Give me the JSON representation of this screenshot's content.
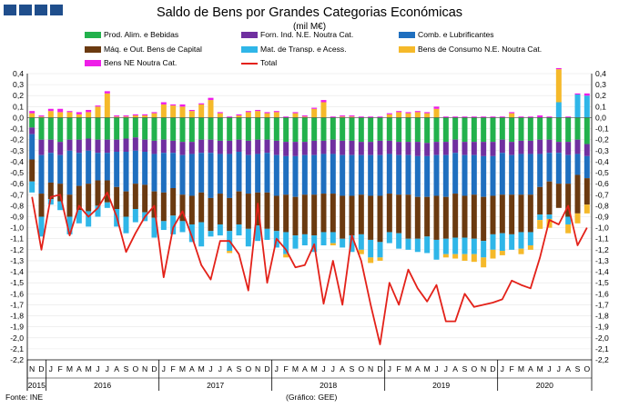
{
  "header": {
    "title": "Saldo de Bens por Grandes Categorias Económicas",
    "unit": "(mil M€)"
  },
  "footer": {
    "source": "Fonte: INE",
    "credit": "(Gráfico: GEE)"
  },
  "colors": {
    "food": "#22b14c",
    "ind": "#7030a0",
    "fuel": "#1f6fbf",
    "cap": "#6b3a10",
    "trans": "#2fb6e8",
    "cons": "#f5b92a",
    "ne": "#ee1ee8",
    "total": "#e32119"
  },
  "chart_data": {
    "type": "bar",
    "stacked": true,
    "ylim": [
      -2.2,
      0.4
    ],
    "yticks": [
      "0,4",
      "0,3",
      "0,2",
      "0,1",
      "0,0",
      "-0,1",
      "-0,2",
      "-0,3",
      "-0,4",
      "-0,5",
      "-0,6",
      "-0,7",
      "-0,8",
      "-0,9",
      "-1,0",
      "-1,1",
      "-1,2",
      "-1,3",
      "-1,4",
      "-1,5",
      "-1,6",
      "-1,7",
      "-1,8",
      "-1,9",
      "-2,0",
      "-2,1",
      "-2,2"
    ],
    "categories": [
      "N",
      "D",
      "J",
      "F",
      "M",
      "A",
      "M",
      "J",
      "J",
      "A",
      "S",
      "O",
      "N",
      "D",
      "J",
      "F",
      "M",
      "A",
      "M",
      "J",
      "J",
      "A",
      "S",
      "O",
      "N",
      "D",
      "J",
      "F",
      "M",
      "A",
      "M",
      "J",
      "J",
      "A",
      "S",
      "O",
      "N",
      "D",
      "J",
      "F",
      "M",
      "A",
      "M",
      "J",
      "J",
      "A",
      "S",
      "O",
      "N",
      "D",
      "J",
      "F",
      "M",
      "A",
      "M",
      "J",
      "J",
      "A",
      "S",
      "O"
    ],
    "years": [
      {
        "label": "2015",
        "start": 0,
        "count": 2
      },
      {
        "label": "2016",
        "start": 2,
        "count": 12
      },
      {
        "label": "2017",
        "start": 14,
        "count": 12
      },
      {
        "label": "2018",
        "start": 26,
        "count": 12
      },
      {
        "label": "2019",
        "start": 38,
        "count": 12
      },
      {
        "label": "2020",
        "start": 50,
        "count": 10
      }
    ],
    "series": [
      {
        "name": "Prod. Alim. e Bebidas",
        "key": "food",
        "values": [
          -0.09,
          -0.2,
          -0.2,
          -0.22,
          -0.2,
          -0.2,
          -0.19,
          -0.2,
          -0.2,
          -0.2,
          -0.19,
          -0.18,
          -0.2,
          -0.21,
          -0.2,
          -0.21,
          -0.22,
          -0.22,
          -0.2,
          -0.2,
          -0.21,
          -0.21,
          -0.2,
          -0.21,
          -0.2,
          -0.2,
          -0.21,
          -0.22,
          -0.22,
          -0.22,
          -0.21,
          -0.21,
          -0.2,
          -0.21,
          -0.21,
          -0.22,
          -0.22,
          -0.21,
          -0.21,
          -0.22,
          -0.22,
          -0.22,
          -0.23,
          -0.22,
          -0.22,
          -0.2,
          -0.22,
          -0.22,
          -0.22,
          -0.22,
          -0.2,
          -0.22,
          -0.21,
          -0.21,
          -0.2,
          -0.2,
          -0.22,
          -0.22,
          -0.2,
          -0.24
        ]
      },
      {
        "name": "Forn. Ind. N.E. Noutra Cat.",
        "key": "ind",
        "values": [
          -0.06,
          -0.14,
          -0.12,
          -0.12,
          -0.1,
          -0.12,
          -0.11,
          -0.12,
          -0.12,
          -0.11,
          -0.12,
          -0.12,
          -0.11,
          -0.12,
          -0.12,
          -0.11,
          -0.12,
          -0.11,
          -0.12,
          -0.12,
          -0.12,
          -0.12,
          -0.11,
          -0.13,
          -0.13,
          -0.12,
          -0.13,
          -0.13,
          -0.13,
          -0.12,
          -0.13,
          -0.12,
          -0.13,
          -0.13,
          -0.13,
          -0.12,
          -0.12,
          -0.13,
          -0.12,
          -0.12,
          -0.12,
          -0.13,
          -0.12,
          -0.12,
          -0.12,
          -0.12,
          -0.12,
          -0.12,
          -0.13,
          -0.13,
          -0.12,
          -0.12,
          -0.12,
          -0.12,
          -0.13,
          -0.12,
          -0.1,
          -0.12,
          -0.13,
          -0.11
        ]
      },
      {
        "name": "Comb. e Lubrificantes",
        "key": "fuel",
        "values": [
          -0.23,
          -0.35,
          -0.27,
          -0.26,
          -0.4,
          -0.3,
          -0.3,
          -0.25,
          -0.25,
          -0.32,
          -0.36,
          -0.3,
          -0.3,
          -0.34,
          -0.36,
          -0.32,
          -0.36,
          -0.38,
          -0.36,
          -0.41,
          -0.36,
          -0.4,
          -0.36,
          -0.35,
          -0.35,
          -0.36,
          -0.37,
          -0.35,
          -0.37,
          -0.36,
          -0.36,
          -0.36,
          -0.36,
          -0.37,
          -0.37,
          -0.36,
          -0.37,
          -0.37,
          -0.36,
          -0.36,
          -0.36,
          -0.37,
          -0.37,
          -0.37,
          -0.38,
          -0.37,
          -0.37,
          -0.36,
          -0.37,
          -0.36,
          -0.38,
          -0.36,
          -0.37,
          -0.37,
          -0.3,
          -0.26,
          -0.28,
          -0.26,
          -0.19,
          -0.2
        ]
      },
      {
        "name": "Máq. e Out. Bens de Capital",
        "key": "cap",
        "values": [
          -0.2,
          -0.21,
          -0.15,
          -0.16,
          -0.2,
          -0.22,
          -0.25,
          -0.23,
          -0.2,
          -0.2,
          -0.23,
          -0.23,
          -0.25,
          -0.24,
          -0.26,
          -0.25,
          -0.24,
          -0.26,
          -0.27,
          -0.3,
          -0.28,
          -0.3,
          -0.3,
          -0.32,
          -0.3,
          -0.33,
          -0.32,
          -0.34,
          -0.35,
          -0.36,
          -0.37,
          -0.35,
          -0.35,
          -0.39,
          -0.36,
          -0.36,
          -0.4,
          -0.42,
          -0.35,
          -0.35,
          -0.4,
          -0.38,
          -0.36,
          -0.4,
          -0.38,
          -0.4,
          -0.38,
          -0.4,
          -0.4,
          -0.35,
          -0.35,
          -0.36,
          -0.34,
          -0.34,
          -0.25,
          -0.3,
          -0.22,
          -0.3,
          -0.35,
          -0.24
        ]
      },
      {
        "name": "Mat. de Transp. e Acess.",
        "key": "trans",
        "values": [
          -0.1,
          -0.18,
          -0.05,
          -0.08,
          -0.16,
          -0.12,
          -0.14,
          -0.1,
          -0.05,
          -0.16,
          -0.15,
          -0.12,
          -0.08,
          -0.18,
          -0.08,
          -0.17,
          -0.1,
          -0.16,
          -0.22,
          -0.05,
          -0.1,
          -0.18,
          -0.1,
          -0.16,
          -0.14,
          -0.1,
          -0.15,
          -0.2,
          -0.12,
          -0.1,
          -0.15,
          -0.12,
          -0.1,
          -0.08,
          -0.15,
          -0.14,
          -0.16,
          -0.14,
          -0.1,
          -0.14,
          -0.1,
          -0.12,
          -0.15,
          -0.18,
          -0.14,
          -0.15,
          -0.15,
          -0.14,
          -0.15,
          -0.14,
          -0.16,
          -0.14,
          -0.15,
          -0.12,
          -0.05,
          -0.04,
          0.14,
          -0.07,
          0.21,
          0.2
        ]
      },
      {
        "name": "Bens de Consumo N.E. Noutra Cat.",
        "key": "cons",
        "values": [
          0.04,
          0.01,
          0.06,
          0.05,
          0.05,
          0.03,
          0.05,
          0.1,
          0.22,
          0.01,
          0.01,
          0.02,
          0.02,
          0.04,
          0.12,
          0.11,
          0.1,
          0.06,
          0.12,
          0.16,
          0.04,
          -0.02,
          0.02,
          0.05,
          0.06,
          0.04,
          0.05,
          -0.03,
          0.04,
          0.01,
          0.08,
          0.14,
          -0.02,
          0.01,
          0.01,
          -0.04,
          -0.05,
          -0.03,
          0.03,
          0.05,
          0.04,
          0.05,
          0.04,
          0.08,
          -0.03,
          -0.04,
          -0.06,
          -0.07,
          -0.09,
          -0.08,
          -0.04,
          0.04,
          -0.05,
          -0.04,
          -0.08,
          -0.08,
          0.3,
          -0.08,
          -0.09,
          -0.08
        ]
      },
      {
        "name": "Bens NE Noutra Cat.",
        "key": "ne",
        "values": [
          0.02,
          0.01,
          0.02,
          0.03,
          0.01,
          0.02,
          0.02,
          0.01,
          0.02,
          0.01,
          0.01,
          0.01,
          0.01,
          0.01,
          0.02,
          0.01,
          0.02,
          0.01,
          0.01,
          0.02,
          0.01,
          0.01,
          0.01,
          0.01,
          0.01,
          0.01,
          0.01,
          0.01,
          0.01,
          0.01,
          0.01,
          0.02,
          0.01,
          0.01,
          0.01,
          0.01,
          0.01,
          0.01,
          0.01,
          0.01,
          0.01,
          0.01,
          0.01,
          0.02,
          0.01,
          0.01,
          0.01,
          0.01,
          0.01,
          0.01,
          0.01,
          0.01,
          0.01,
          0.01,
          0.02,
          0.01,
          0.01,
          0.01,
          0.01,
          0.02
        ]
      }
    ],
    "total": {
      "name": "Total",
      "values": [
        -0.72,
        -1.2,
        -0.72,
        -0.7,
        -1.07,
        -0.8,
        -0.9,
        -0.82,
        -0.68,
        -0.9,
        -1.22,
        -1.05,
        -0.9,
        -0.8,
        -1.45,
        -1.0,
        -0.85,
        -1.08,
        -1.34,
        -1.47,
        -1.12,
        -1.12,
        -1.24,
        -1.57,
        -0.78,
        -1.5,
        -1.1,
        -1.2,
        -1.36,
        -1.34,
        -1.15,
        -1.69,
        -1.3,
        -1.7,
        -1.07,
        -1.3,
        -1.7,
        -2.06,
        -1.5,
        -1.7,
        -1.38,
        -1.55,
        -1.67,
        -1.52,
        -1.85,
        -1.85,
        -1.6,
        -1.72,
        -1.7,
        -1.68,
        -1.65,
        -1.48,
        -1.52,
        -1.55,
        -1.27,
        -0.93,
        -0.97,
        -0.8,
        -1.16,
        -1.0
      ]
    }
  }
}
